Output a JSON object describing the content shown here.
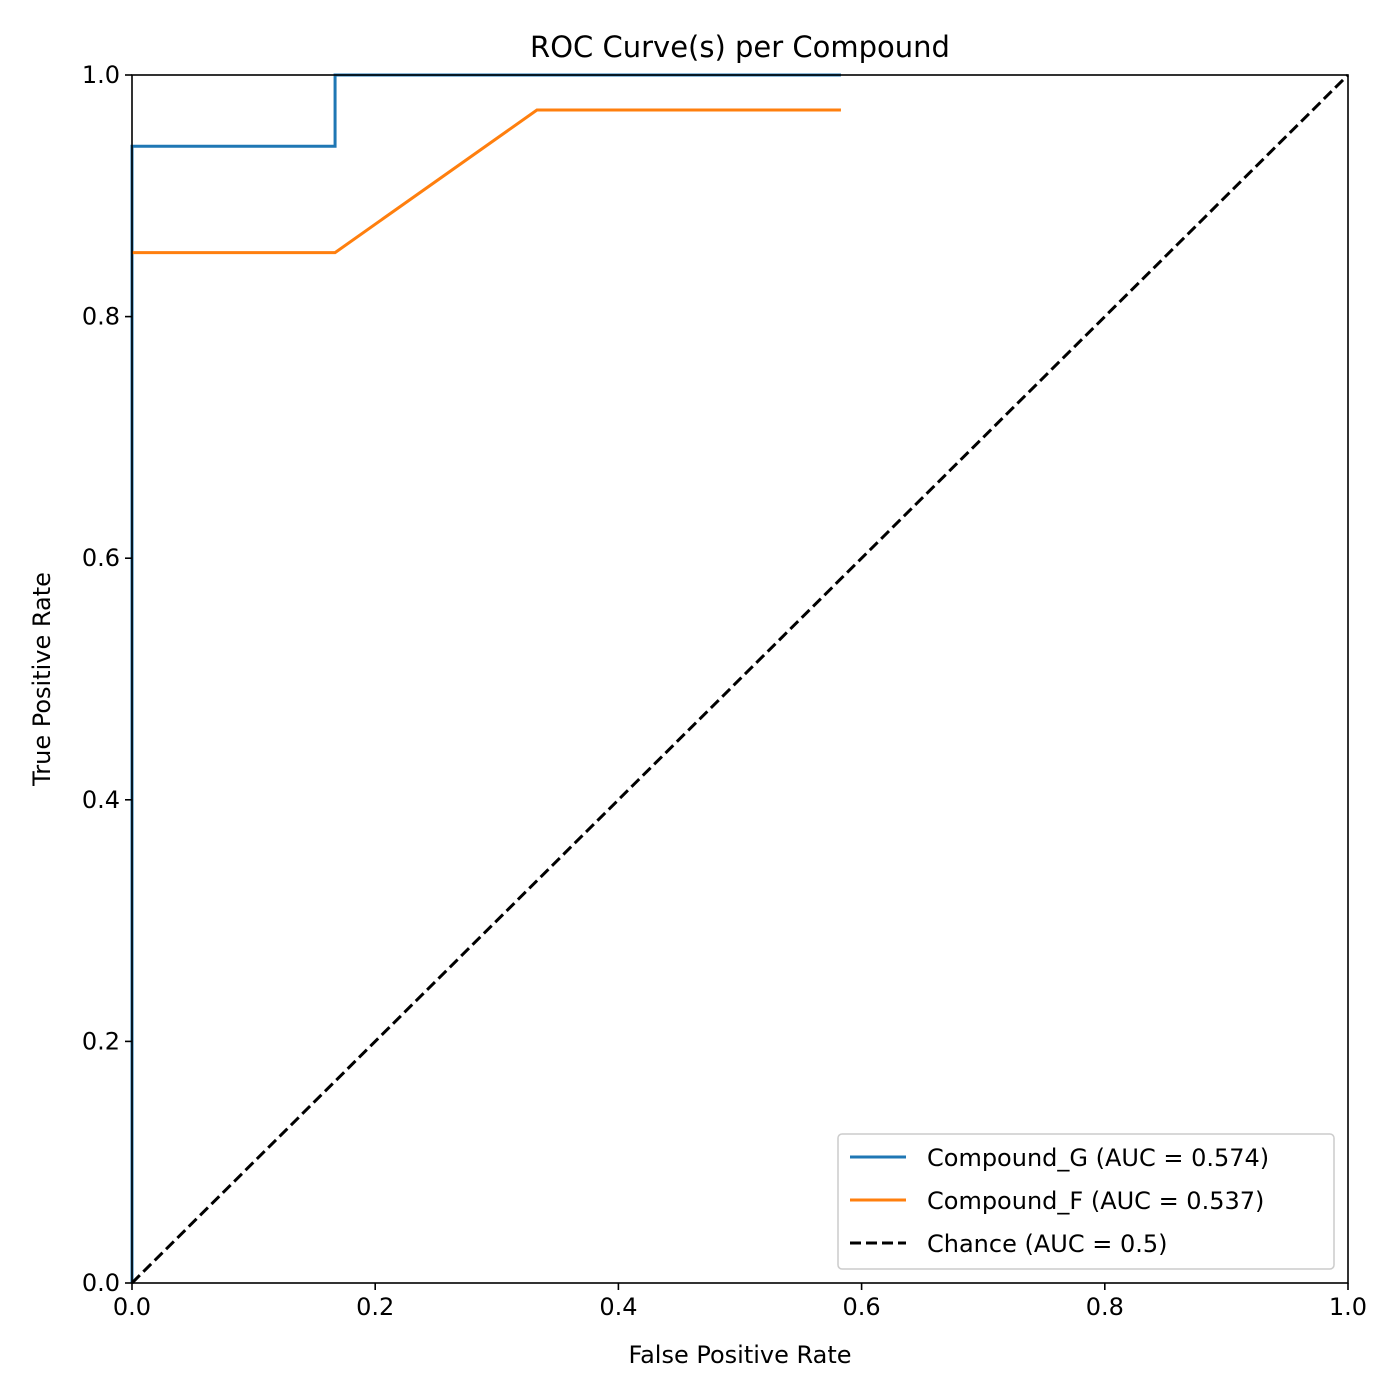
{
  "chart_data": {
    "type": "line",
    "title": "ROC Curve(s) per Compound",
    "xlabel": "False Positive Rate",
    "ylabel": "True Positive Rate",
    "xlim": [
      0.0,
      1.0
    ],
    "ylim": [
      0.0,
      1.0
    ],
    "xticks": [
      "0.0",
      "0.2",
      "0.4",
      "0.6",
      "0.8",
      "1.0"
    ],
    "yticks": [
      "0.0",
      "0.2",
      "0.4",
      "0.6",
      "0.8",
      "1.0"
    ],
    "grid": false,
    "legend_position": "lower-right",
    "series": [
      {
        "name": "Compound_G (AUC = 0.574)",
        "color": "#1f77b4",
        "dash": "solid",
        "points": [
          [
            0.0,
            0.0
          ],
          [
            0.0,
            0.941
          ],
          [
            0.167,
            0.941
          ],
          [
            0.167,
            1.0
          ],
          [
            0.583,
            1.0
          ]
        ]
      },
      {
        "name": "Compound_F (AUC = 0.537)",
        "color": "#ff7f0e",
        "dash": "solid",
        "points": [
          [
            0.0,
            0.853
          ],
          [
            0.167,
            0.853
          ],
          [
            0.333,
            0.971
          ],
          [
            0.583,
            0.971
          ]
        ]
      },
      {
        "name": "Chance (AUC = 0.5)",
        "color": "#000000",
        "dash": "dashed",
        "points": [
          [
            0.0,
            0.0
          ],
          [
            1.0,
            1.0
          ]
        ]
      }
    ]
  }
}
